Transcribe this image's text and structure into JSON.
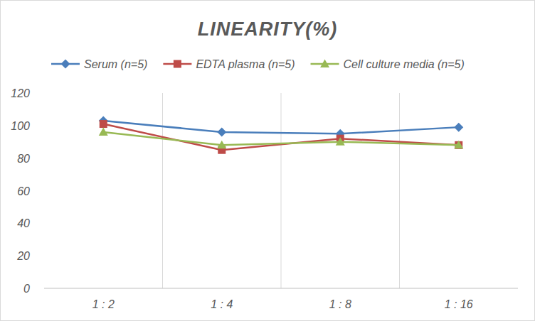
{
  "chart_data": {
    "type": "line",
    "title": "LINEARITY(%)",
    "categories": [
      "1 : 2",
      "1 : 4",
      "1 : 8",
      "1 : 16"
    ],
    "series": [
      {
        "name": "Serum (n=5)",
        "color": "#4a7ebb",
        "marker": "diamond",
        "values": [
          103,
          96,
          95,
          99
        ]
      },
      {
        "name": "EDTA plasma (n=5)",
        "color": "#be4b48",
        "marker": "square",
        "values": [
          101,
          85,
          92,
          88
        ]
      },
      {
        "name": "Cell culture media (n=5)",
        "color": "#98b954",
        "marker": "triangle",
        "values": [
          96,
          88,
          90,
          88
        ]
      }
    ],
    "ylim": [
      0,
      120
    ],
    "yticks": [
      0,
      20,
      40,
      60,
      80,
      100,
      120
    ],
    "grid": true,
    "legend": "top"
  }
}
